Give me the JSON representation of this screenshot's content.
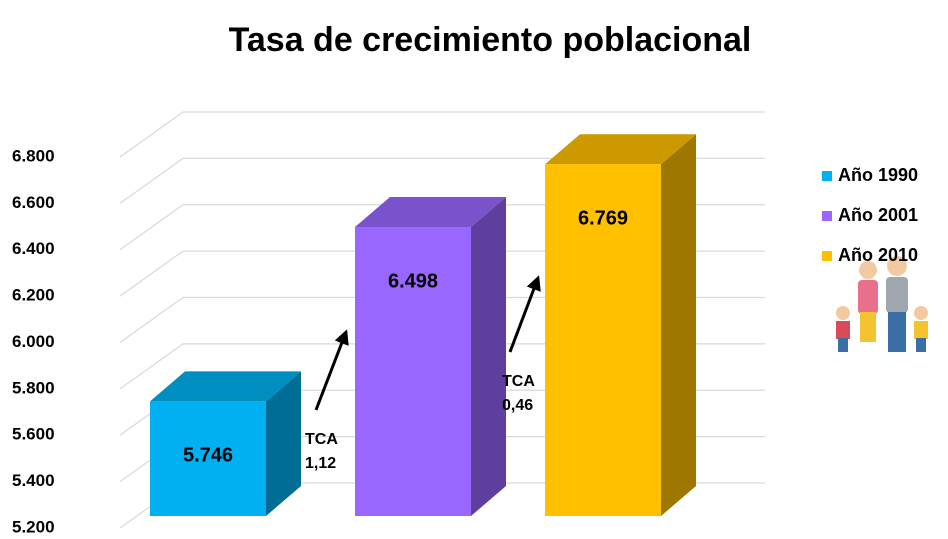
{
  "chart_data": {
    "type": "bar3d",
    "title": "Tasa de crecimiento poblacional",
    "series": [
      {
        "name": "Año 1990",
        "color": "#00b0f0",
        "values": [
          5746
        ],
        "value_labels": [
          "5.746"
        ]
      },
      {
        "name": "Año 2001",
        "color": "#9966ff",
        "values": [
          6498
        ],
        "value_labels": [
          "6.498"
        ]
      },
      {
        "name": "Año 2010",
        "color": "#ffc000",
        "values": [
          6769
        ],
        "value_labels": [
          "6.769"
        ]
      }
    ],
    "ylim": [
      5200,
      6800
    ],
    "yticks": [
      {
        "value": 5200,
        "label": "5.200"
      },
      {
        "value": 5400,
        "label": "5.400"
      },
      {
        "value": 5600,
        "label": "5.600"
      },
      {
        "value": 5800,
        "label": "5.800"
      },
      {
        "value": 6000,
        "label": "6.000"
      },
      {
        "value": 6200,
        "label": "6.200"
      },
      {
        "value": 6400,
        "label": "6.400"
      },
      {
        "value": 6600,
        "label": "6.600"
      },
      {
        "value": 6800,
        "label": "6.800"
      }
    ],
    "grid": true,
    "legend": "right",
    "annotations": [
      {
        "lines": [
          "TCA",
          "1,12"
        ]
      },
      {
        "lines": [
          "TCA",
          "0,46"
        ]
      }
    ]
  }
}
